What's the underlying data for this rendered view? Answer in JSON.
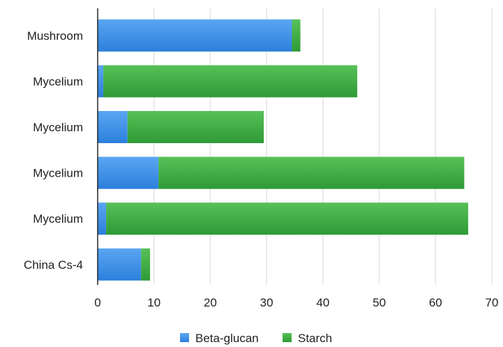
{
  "chart_data": {
    "type": "bar",
    "orientation": "horizontal",
    "stacked": true,
    "categories": [
      "Mushroom",
      "Mycelium",
      "Mycelium",
      "Mycelium",
      "Mycelium",
      "China Cs-4"
    ],
    "series": [
      {
        "name": "Beta-glucan",
        "color": "#3b8ee8",
        "values": [
          34.5,
          1.0,
          5.3,
          10.8,
          1.5,
          7.7
        ]
      },
      {
        "name": "Starch",
        "color": "#3aa83a",
        "values": [
          1.5,
          45.1,
          24.2,
          54.3,
          64.3,
          1.6
        ]
      }
    ],
    "xlim": [
      0,
      70
    ],
    "xticks": [
      0,
      10,
      20,
      30,
      40,
      50,
      60,
      70
    ],
    "grid": true,
    "legend_position": "bottom"
  }
}
